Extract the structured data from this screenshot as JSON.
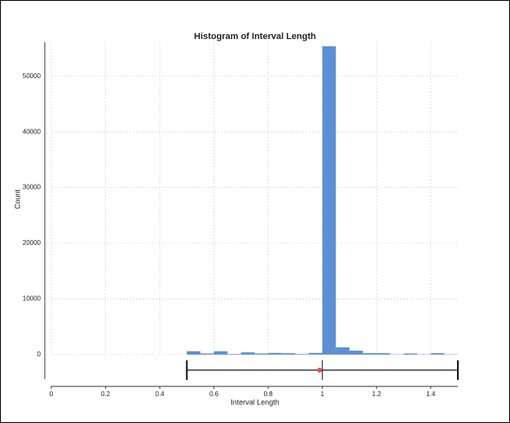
{
  "chart_data": {
    "type": "histogram",
    "title": "Histogram of Interval Length",
    "x_label": "Interval Length",
    "y_label": "Count",
    "bins": [
      0.5,
      0.55,
      0.6,
      0.65,
      0.7,
      0.75,
      0.8,
      0.85,
      0.9,
      0.95,
      1.0,
      1.05,
      1.1,
      1.15,
      1.2,
      1.25,
      1.3,
      1.35,
      1.4,
      1.45,
      1.5
    ],
    "values": [
      600,
      200,
      600,
      100,
      400,
      200,
      300,
      250,
      100,
      300,
      55400,
      1300,
      700,
      250,
      250,
      50,
      200,
      50,
      250,
      50
    ],
    "color": "#5b8fd6",
    "xlim": [
      0,
      1.5
    ],
    "xticks": [
      0,
      0.2,
      0.4,
      0.6,
      0.8,
      1,
      1.2,
      1.4
    ],
    "ylim": [
      -4400,
      56100
    ],
    "yticks": [
      0,
      10000,
      20000,
      30000,
      40000,
      50000
    ],
    "grid": true,
    "range_bar": {
      "min": 0.5,
      "median": 1,
      "mean": 0.99,
      "max": 1.5,
      "point_color": "#e0514a"
    }
  }
}
